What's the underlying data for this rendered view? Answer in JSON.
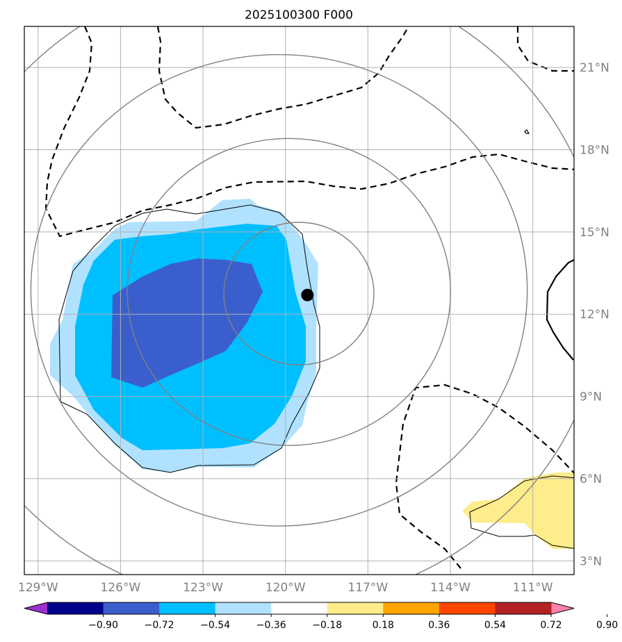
{
  "title": "2025100300 F000",
  "map": {
    "lon_range": [
      -129.5,
      -109.5
    ],
    "lat_range": [
      2.5,
      22.5
    ],
    "lon_ticks": [
      {
        "value": -129,
        "label": "129°W"
      },
      {
        "value": -126,
        "label": "126°W"
      },
      {
        "value": -123,
        "label": "123°W"
      },
      {
        "value": -120,
        "label": "120°W"
      },
      {
        "value": -117,
        "label": "117°W"
      },
      {
        "value": -114,
        "label": "114°W"
      },
      {
        "value": -111,
        "label": "111°W"
      }
    ],
    "lat_ticks": [
      {
        "value": 3,
        "label": "3°N"
      },
      {
        "value": 6,
        "label": "6°N"
      },
      {
        "value": 9,
        "label": "9°N"
      },
      {
        "value": 12,
        "label": "12°N"
      },
      {
        "value": 15,
        "label": "15°N"
      },
      {
        "value": 18,
        "label": "18°N"
      },
      {
        "value": 21,
        "label": "21°N"
      }
    ],
    "storm_center": {
      "lon": -119.2,
      "lat": 12.7
    },
    "range_rings_deg": [
      2.6,
      5.6,
      8.6,
      11.6
    ],
    "colors": {
      "grid": "#b0b0b0",
      "ring": "#808080",
      "center": "#000000"
    }
  },
  "colorbar": {
    "bounds": [
      "−0.90",
      "−0.72",
      "−0.54",
      "−0.36",
      "−0.18",
      "0.18",
      "0.36",
      "0.54",
      "0.72",
      "0.90"
    ],
    "colors": [
      "#9932cc",
      "#00008b",
      "#3a5fcd",
      "#00bfff",
      "#b0e2ff",
      "#ffffff",
      "#ffec8b",
      "#ffa500",
      "#ff4500",
      "#b22222",
      "#ff82ab"
    ]
  }
}
